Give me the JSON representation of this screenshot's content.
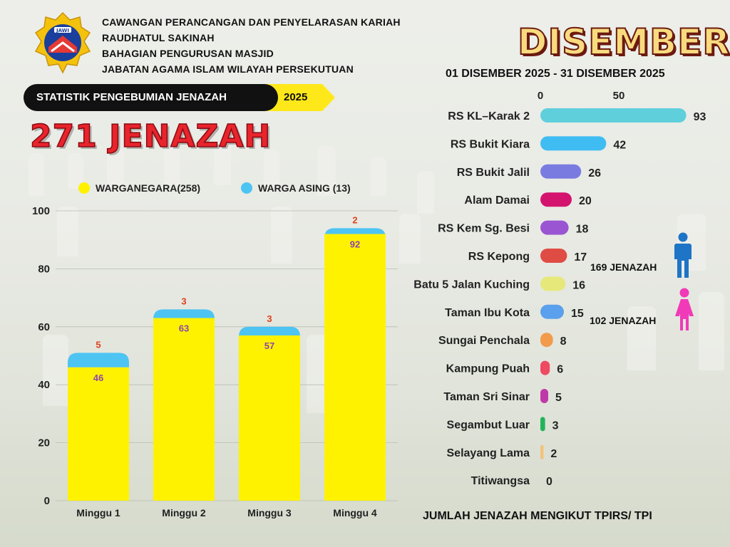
{
  "header": {
    "org_lines": [
      "CAWANGAN PERANCANGAN DAN PENYELARASAN KARIAH",
      "RAUDHATUL SAKINAH",
      "BAHAGIAN PENGURUSAN MASJID",
      "JABATAN AGAMA ISLAM WILAYAH PERSEKUTUAN"
    ],
    "logo_text": "JAWI",
    "stat_title": "STATISTIK PENGEBUMIAN JENAZAH",
    "year": "2025",
    "total": "271 JENAZAH",
    "month": "DISEMBER",
    "date_range": "01 DISEMBER 2025 - 31 DISEMBER 2025"
  },
  "gender": {
    "male": "169 JENAZAH",
    "female": "102 JENAZAH",
    "male_color": "#1e74c6",
    "female_color": "#f03ab8"
  },
  "footer": "JUMLAH JENAZAH MENGIKUT TPIRS/ TPI",
  "chart_data": [
    {
      "type": "bar",
      "stacked": true,
      "categories": [
        "Minggu 1",
        "Minggu 2",
        "Minggu 3",
        "Minggu 4"
      ],
      "series": [
        {
          "name": "WARGANEGARA(258)",
          "values": [
            46,
            63,
            57,
            92
          ],
          "color": "#fff200",
          "label_color": "#8e44ad"
        },
        {
          "name": "WARGA ASING (13)",
          "values": [
            5,
            3,
            3,
            2
          ],
          "color": "#4dc4f2",
          "label_color": "#e0401c"
        }
      ],
      "ylim": [
        0,
        100
      ],
      "yticks": [
        "0",
        "20",
        "40",
        "60",
        "80",
        "100"
      ],
      "grid": true,
      "legend_position": "top"
    },
    {
      "type": "bar",
      "orientation": "horizontal",
      "categories": [
        "RS KL–Karak 2",
        "RS Bukit Kiara",
        "RS Bukit Jalil",
        "Alam Damai",
        "RS Kem Sg. Besi",
        "RS Kepong",
        "Batu 5 Jalan Kuching",
        "Taman Ibu Kota",
        "Sungai Penchala",
        "Kampung Puah",
        "Taman Sri Sinar",
        "Segambut Luar",
        "Selayang Lama",
        "Titiwangsa"
      ],
      "values": [
        93,
        42,
        26,
        20,
        18,
        17,
        16,
        15,
        8,
        6,
        5,
        3,
        2,
        0
      ],
      "colors": [
        "#5fcfdc",
        "#3fbdf2",
        "#7a7be0",
        "#d4136e",
        "#9a55d2",
        "#df4c44",
        "#e6e87a",
        "#5aa0ec",
        "#f29b4c",
        "#ee4a61",
        "#bf3aa8",
        "#23b45a",
        "#f2c27a",
        "#cccccc"
      ],
      "xticks": [
        "0",
        "50"
      ],
      "xlim": [
        0,
        100
      ]
    }
  ]
}
